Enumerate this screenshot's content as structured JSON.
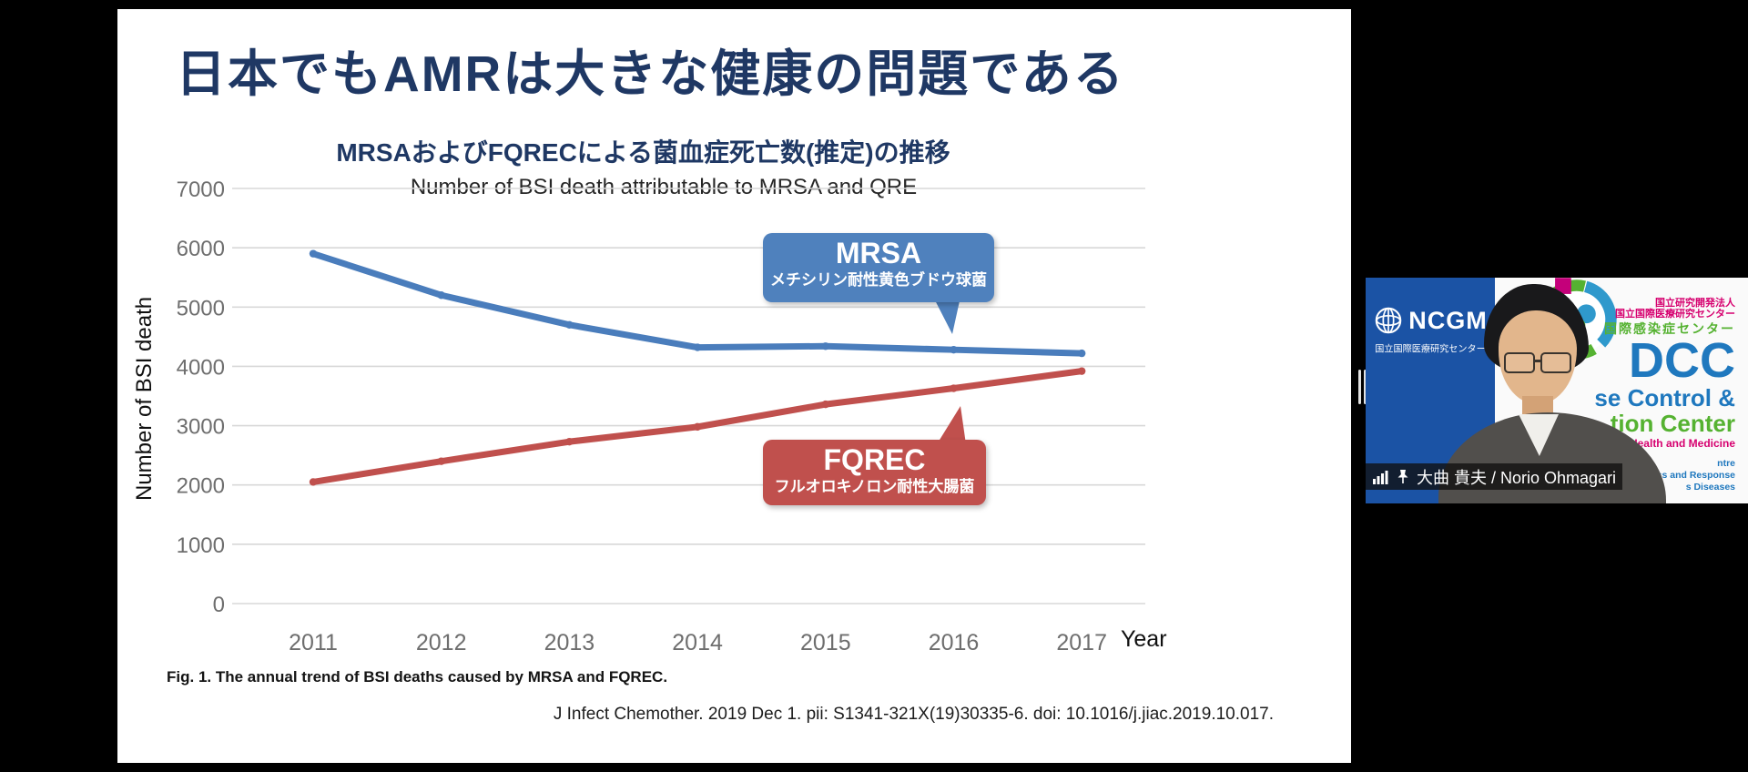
{
  "colors": {
    "canvas_bg": "#000000",
    "slide_bg": "#ffffff",
    "title_navy": "#1F3864",
    "gridline": "#D8D8D8",
    "tick_gray": "#6E6E6E",
    "ncgm_blue": "#1B53A5",
    "dcc_blue": "#1F78BE",
    "dcc_green": "#55B231",
    "dcc_pink": "#D6006F"
  },
  "slide": {
    "title": "日本でもAMRは大きな健康の問題である",
    "subtitle": "MRSAおよびFQRECによる菌血症死亡数(推定)の推移",
    "caption": "Fig. 1. The annual trend of BSI deaths caused by MRSA and FQREC.",
    "citation": "J Infect Chemother. 2019 Dec 1. pii: S1341-321X(19)30335-6. doi: 10.1016/j.jiac.2019.10.017."
  },
  "chart_data": {
    "type": "line",
    "title": "Number of BSI death attributable to MRSA and QRE",
    "xlabel": "Year",
    "ylabel": "Number of BSI death",
    "x": [
      2011,
      2012,
      2013,
      2014,
      2015,
      2016,
      2017
    ],
    "series": [
      {
        "name": "MRSA",
        "name_jp": "メチシリン耐性黄色ブドウ球菌",
        "color": "#4A7DBC",
        "values": [
          5900,
          5200,
          4700,
          4320,
          4340,
          4280,
          4220
        ]
      },
      {
        "name": "FQREC",
        "name_jp": "フルオロキノロン耐性大腸菌",
        "color": "#C0504D",
        "values": [
          2050,
          2400,
          2730,
          2980,
          3360,
          3630,
          3920
        ]
      }
    ],
    "ylim": [
      0,
      7000
    ],
    "yticks": [
      0,
      1000,
      2000,
      3000,
      4000,
      5000,
      6000,
      7000
    ],
    "grid": true,
    "legend_position": "callout-boxes-on-plot"
  },
  "callouts": {
    "mrsa": {
      "title": "MRSA",
      "subtitle": "メチシリン耐性黄色ブドウ球菌",
      "color": "#4F81BD"
    },
    "fqrec": {
      "title": "FQREC",
      "subtitle": "フルオロキノロン耐性大腸菌",
      "color": "#C0504D"
    }
  },
  "video_panel": {
    "speaker_name": "大曲 貴夫 / Norio Ohmagari",
    "icons": [
      "signal-bars-icon",
      "pin-icon"
    ],
    "ncgm": {
      "acronym": "NCGM",
      "org_jp": "国立国際医療研究センター"
    },
    "dcc": {
      "org_line1": "国立研究開発法人",
      "org_line2": "国立国際医療研究センター",
      "center_jp": "国際感染症センター",
      "acronym": "DCC",
      "name_frag1": "se Control &",
      "name_frag2": "tion Center",
      "name_frag3": "al Health and Medicine",
      "sub_frag1": "ntre",
      "sub_frag2": "aredness and Response",
      "sub_frag3": "s Diseases"
    }
  }
}
